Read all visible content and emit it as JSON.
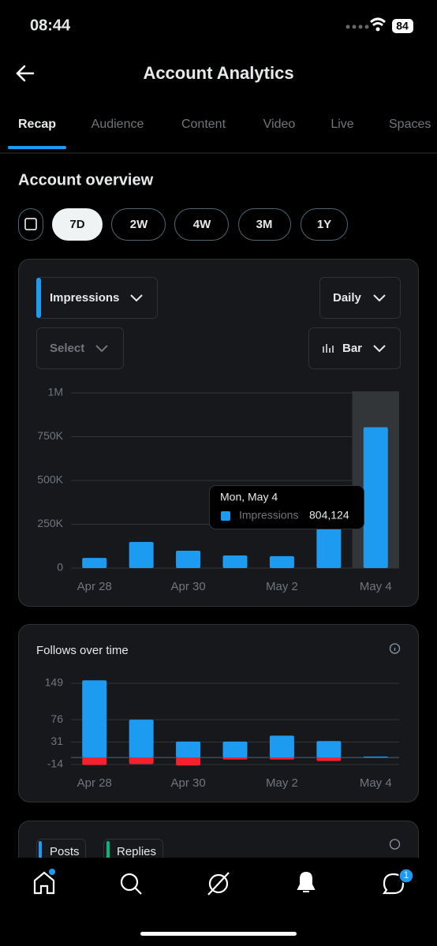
{
  "status_bar": {
    "time": "08:44",
    "battery": "84"
  },
  "header": {
    "title": "Account Analytics"
  },
  "tabs": [
    "Recap",
    "Audience",
    "Content",
    "Video",
    "Live",
    "Spaces"
  ],
  "section_title": "Account overview",
  "ranges": [
    "7D",
    "2W",
    "4W",
    "3M",
    "1Y"
  ],
  "controls": {
    "metric": "Impressions",
    "interval": "Daily",
    "compare": "Select",
    "chart_style": "Bar"
  },
  "chart_data": [
    {
      "type": "bar",
      "categories": [
        "Apr 28",
        null,
        "Apr 30",
        null,
        "May 2",
        null,
        "May 4"
      ],
      "series": [
        {
          "name": "Impressions",
          "color": "#1d9bf0",
          "values": [
            58000,
            149000,
            99000,
            72000,
            68000,
            260000,
            804124
          ]
        }
      ],
      "ylim": [
        0,
        1000000
      ],
      "yticks": [
        0,
        {
          "value": 250000,
          "label": "250K"
        },
        {
          "value": 500000,
          "label": "500K"
        },
        {
          "value": 750000,
          "label": "750K"
        },
        {
          "value": 1000000,
          "label": "1M"
        }
      ],
      "grid": true,
      "tooltip": {
        "title": "Mon, May 4",
        "value_label": "804,124"
      }
    },
    {
      "type": "bar",
      "title": "Follows over time",
      "categories": [
        "Apr 28",
        null,
        "Apr 30",
        null,
        "May 2",
        null,
        "May 4"
      ],
      "series": [
        {
          "color": "#1d9bf0",
          "values": [
            155,
            76,
            32,
            32,
            44,
            33,
            2
          ]
        },
        {
          "color": "#f4212e",
          "values": [
            -15,
            -13,
            -16,
            -4,
            -4,
            -7,
            0
          ]
        }
      ],
      "ylim": [
        -18,
        155
      ],
      "yticks": [
        -14,
        31,
        76,
        149
      ],
      "grid": true
    }
  ],
  "card3": {
    "chips": [
      "Posts",
      "Replies"
    ]
  },
  "nav": {
    "badge": "1"
  }
}
